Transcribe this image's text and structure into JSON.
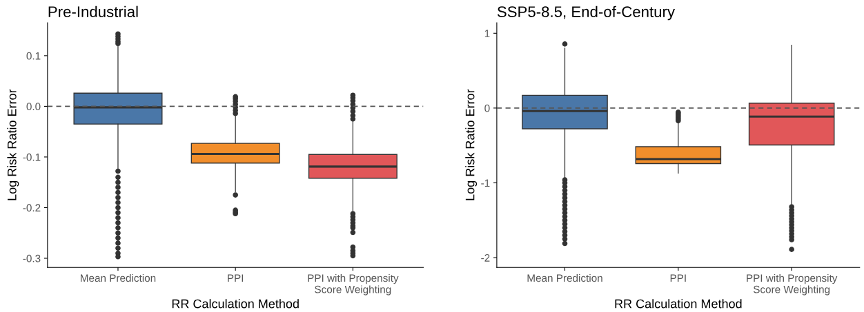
{
  "chart_data": [
    {
      "type": "box",
      "title": "Pre-Industrial",
      "xlabel": "RR Calculation Method",
      "ylabel": "Log Risk Ratio Error",
      "categories": [
        "Mean Prediction",
        "PPI",
        "PPI with Propensity\nScore Weighting"
      ],
      "colors": [
        "#4a77a8",
        "#f28e2b",
        "#e15759"
      ],
      "boxes": [
        {
          "low": -0.126,
          "q1": -0.035,
          "median": -0.002,
          "q3": 0.026,
          "high": 0.118,
          "outliers": [
            0.124,
            0.128,
            0.133,
            0.138,
            0.143,
            -0.128,
            -0.14,
            -0.15,
            -0.16,
            -0.17,
            -0.18,
            -0.19,
            -0.2,
            -0.21,
            -0.22,
            -0.23,
            -0.24,
            -0.25,
            -0.26,
            -0.27,
            -0.28,
            -0.29,
            -0.297
          ]
        },
        {
          "low": -0.169,
          "q1": -0.112,
          "median": -0.094,
          "q3": -0.073,
          "high": -0.017,
          "outliers": [
            -0.014,
            -0.008,
            -0.002,
            0.004,
            0.01,
            0.015,
            0.019,
            -0.175,
            -0.205,
            -0.209,
            -0.212
          ]
        },
        {
          "low": -0.21,
          "q1": -0.142,
          "median": -0.119,
          "q3": -0.095,
          "high": -0.028,
          "outliers": [
            -0.025,
            -0.018,
            -0.01,
            -0.003,
            0.004,
            0.011,
            0.017,
            0.022,
            -0.212,
            -0.218,
            -0.224,
            -0.23,
            -0.236,
            -0.24,
            -0.249,
            -0.278,
            -0.285,
            -0.29,
            -0.295
          ]
        }
      ],
      "ylim": [
        -0.318,
        0.165
      ],
      "yticks": [
        {
          "value": 0.1,
          "label": "0.1"
        },
        {
          "value": 0.0,
          "label": "0.0"
        },
        {
          "value": -0.1,
          "label": "-0.1"
        },
        {
          "value": -0.2,
          "label": "-0.2"
        },
        {
          "value": -0.3,
          "label": "-0.3"
        }
      ],
      "ref_lines": [
        {
          "axis": "y",
          "value": 0,
          "label": null,
          "color": "#555555",
          "line_style": "dashed"
        }
      ],
      "grid": false
    },
    {
      "type": "box",
      "title": "SSP5-8.5, End-of-Century",
      "xlabel": "RR Calculation Method",
      "ylabel": "Log Risk Ratio Error",
      "categories": [
        "Mean Prediction",
        "PPI",
        "PPI with Propensity\nScore Weighting"
      ],
      "colors": [
        "#4a77a8",
        "#f28e2b",
        "#e15759"
      ],
      "boxes": [
        {
          "low": -0.94,
          "q1": -0.277,
          "median": -0.04,
          "q3": 0.17,
          "high": 0.8,
          "outliers": [
            0.856,
            -0.96,
            -1.0,
            -1.05,
            -1.1,
            -1.15,
            -1.2,
            -1.25,
            -1.3,
            -1.35,
            -1.4,
            -1.45,
            -1.5,
            -1.55,
            -1.6,
            -1.65,
            -1.7,
            -1.75,
            -1.81
          ]
        },
        {
          "low": -0.87,
          "q1": -0.742,
          "median": -0.683,
          "q3": -0.517,
          "high": -0.19,
          "outliers": [
            -0.17,
            -0.15,
            -0.13,
            -0.11,
            -0.09,
            -0.07,
            -0.055
          ]
        },
        {
          "low": -1.31,
          "q1": -0.494,
          "median": -0.114,
          "q3": 0.066,
          "high": 0.84,
          "outliers": [
            -1.32,
            -1.36,
            -1.4,
            -1.44,
            -1.48,
            -1.52,
            -1.56,
            -1.6,
            -1.64,
            -1.68,
            -1.72,
            -1.76,
            -1.89
          ]
        }
      ],
      "ylim": [
        -2.13,
        1.14
      ],
      "yticks": [
        1,
        0,
        -1,
        -2
      ],
      "ref_lines": [
        {
          "axis": "y",
          "value": 0,
          "label": null,
          "color": "#555555",
          "line_style": "dashed"
        }
      ],
      "grid": false
    }
  ]
}
